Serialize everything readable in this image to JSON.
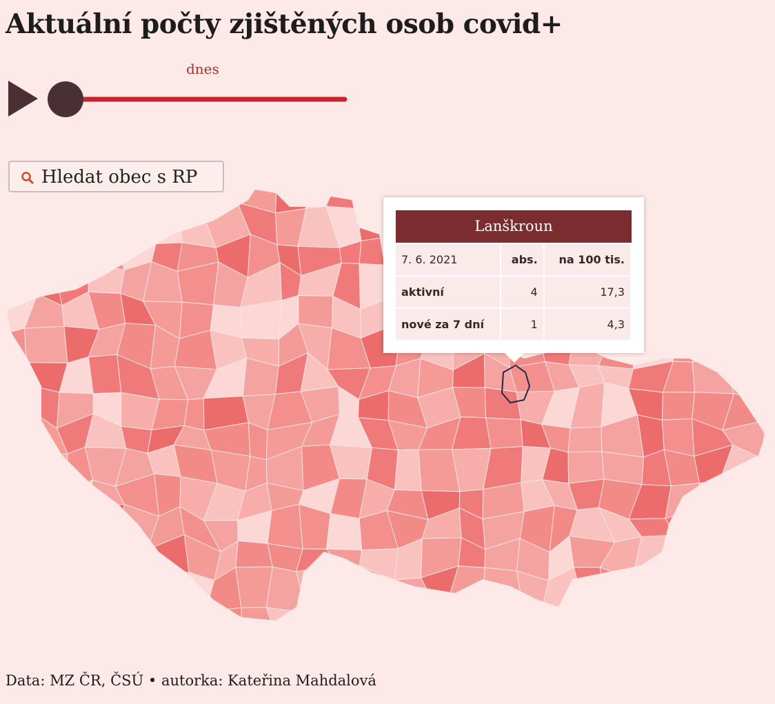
{
  "header": {
    "title": "Aktuální počty zjištěných osob covid+"
  },
  "slider": {
    "label": "dnes"
  },
  "search": {
    "placeholder": "Hledat obec s RP"
  },
  "tooltip": {
    "title": "Lanškroun",
    "table": {
      "rows": [
        [
          "7. 6. 2021",
          "abs.",
          "na 100 tis."
        ],
        [
          "aktivní",
          "4",
          "17,3"
        ],
        [
          "nové za 7 dní",
          "1",
          "4,3"
        ]
      ]
    }
  },
  "footer": {
    "source": "Data: MZ ČR, ČSÚ • autorka: Kateřina Mahdalová"
  }
}
